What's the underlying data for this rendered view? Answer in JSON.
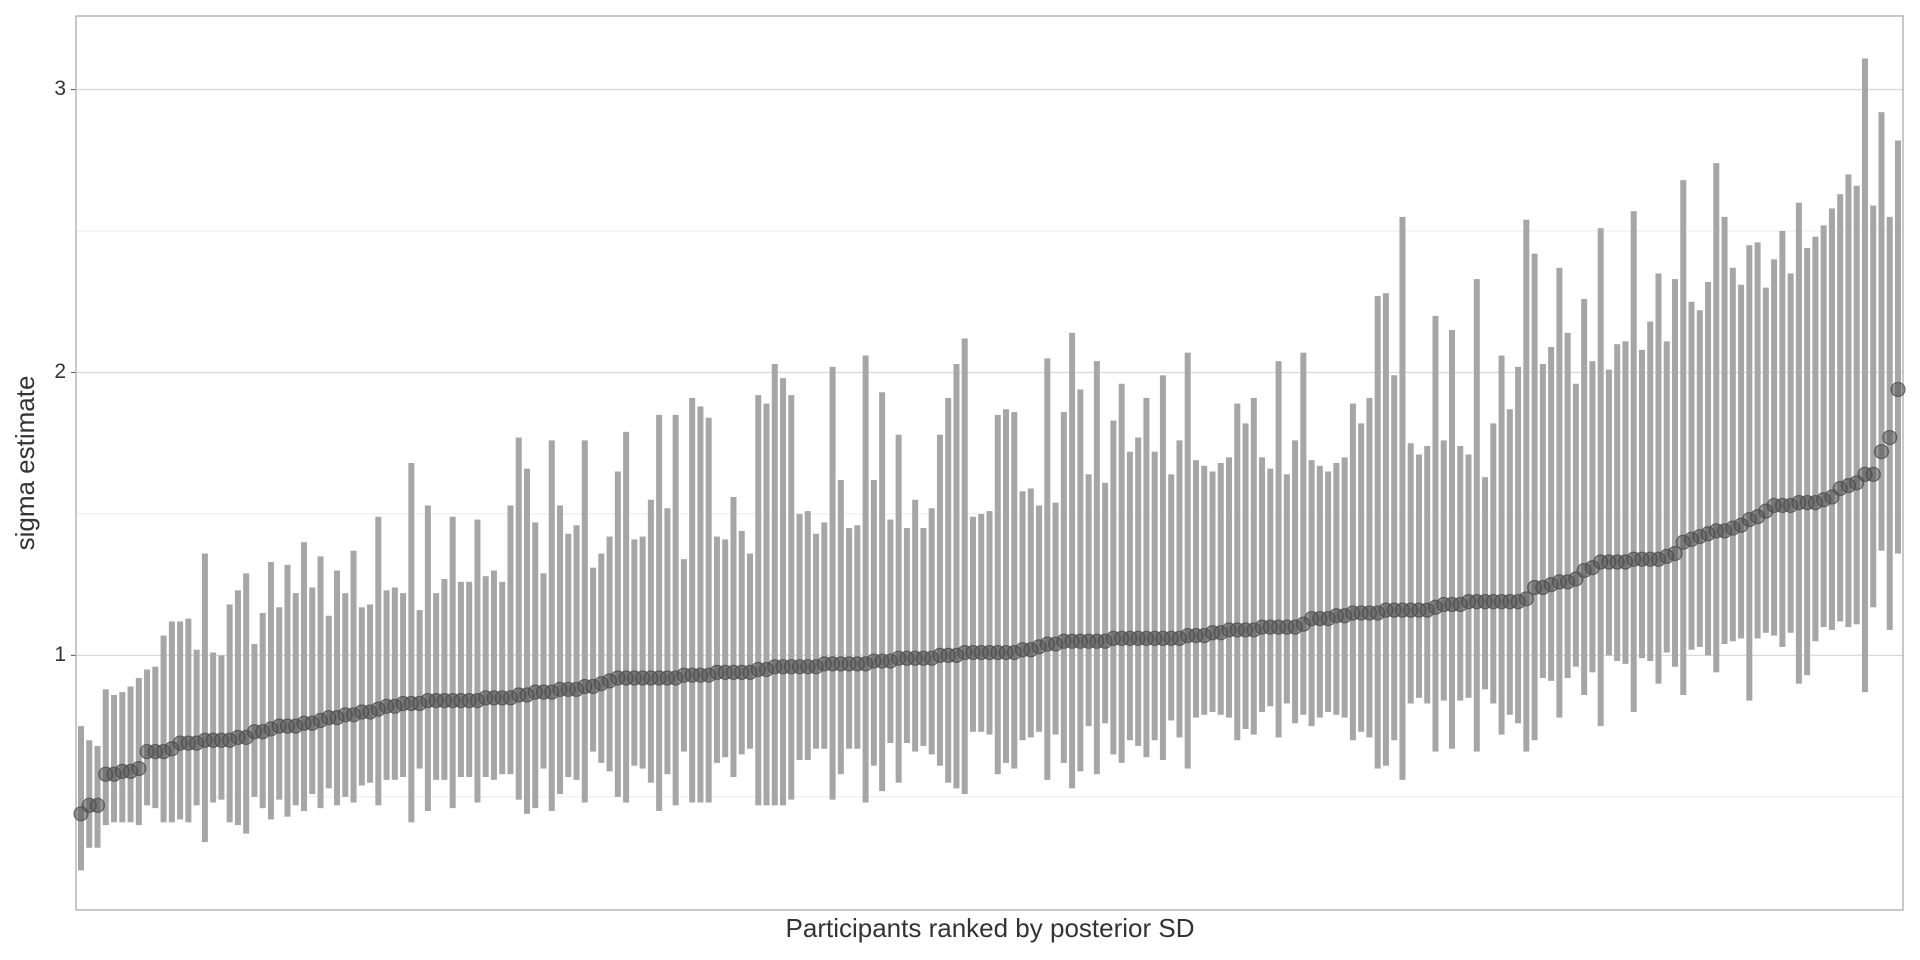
{
  "chart_data": {
    "type": "pointrange",
    "xlabel": "Participants ranked by posterior SD",
    "ylabel": "sigma estimate",
    "ylim": [
      0.1,
      3.26
    ],
    "yticks": [
      1,
      2,
      3
    ],
    "yminor": [
      0.5,
      1.5,
      2.5
    ],
    "grid": true,
    "bar_color": "#a6a6a6",
    "point_color": "#4d4d4d",
    "values": [
      0.44,
      0.47,
      0.47,
      0.58,
      0.58,
      0.59,
      0.59,
      0.6,
      0.66,
      0.66,
      0.66,
      0.67,
      0.69,
      0.69,
      0.69,
      0.7,
      0.7,
      0.7,
      0.7,
      0.71,
      0.71,
      0.73,
      0.73,
      0.74,
      0.75,
      0.75,
      0.75,
      0.76,
      0.76,
      0.77,
      0.78,
      0.78,
      0.79,
      0.79,
      0.8,
      0.8,
      0.81,
      0.82,
      0.82,
      0.83,
      0.83,
      0.83,
      0.84,
      0.84,
      0.84,
      0.84,
      0.84,
      0.84,
      0.84,
      0.85,
      0.85,
      0.85,
      0.85,
      0.86,
      0.86,
      0.87,
      0.87,
      0.87,
      0.88,
      0.88,
      0.88,
      0.89,
      0.89,
      0.9,
      0.91,
      0.92,
      0.92,
      0.92,
      0.92,
      0.92,
      0.92,
      0.92,
      0.92,
      0.93,
      0.93,
      0.93,
      0.93,
      0.94,
      0.94,
      0.94,
      0.94,
      0.94,
      0.95,
      0.95,
      0.96,
      0.96,
      0.96,
      0.96,
      0.96,
      0.96,
      0.97,
      0.97,
      0.97,
      0.97,
      0.97,
      0.97,
      0.98,
      0.98,
      0.98,
      0.99,
      0.99,
      0.99,
      0.99,
      0.99,
      1.0,
      1.0,
      1.0,
      1.01,
      1.01,
      1.01,
      1.01,
      1.01,
      1.01,
      1.01,
      1.02,
      1.02,
      1.03,
      1.04,
      1.04,
      1.05,
      1.05,
      1.05,
      1.05,
      1.05,
      1.05,
      1.06,
      1.06,
      1.06,
      1.06,
      1.06,
      1.06,
      1.06,
      1.06,
      1.06,
      1.07,
      1.07,
      1.07,
      1.08,
      1.08,
      1.09,
      1.09,
      1.09,
      1.09,
      1.1,
      1.1,
      1.1,
      1.1,
      1.1,
      1.11,
      1.13,
      1.13,
      1.13,
      1.14,
      1.14,
      1.15,
      1.15,
      1.15,
      1.15,
      1.16,
      1.16,
      1.16,
      1.16,
      1.16,
      1.16,
      1.17,
      1.18,
      1.18,
      1.18,
      1.19,
      1.19,
      1.19,
      1.19,
      1.19,
      1.19,
      1.19,
      1.2,
      1.24,
      1.24,
      1.25,
      1.26,
      1.26,
      1.27,
      1.3,
      1.31,
      1.33,
      1.33,
      1.33,
      1.33,
      1.34,
      1.34,
      1.34,
      1.34,
      1.35,
      1.36,
      1.4,
      1.41,
      1.42,
      1.43,
      1.44,
      1.44,
      1.45,
      1.46,
      1.48,
      1.49,
      1.51,
      1.53,
      1.53,
      1.53,
      1.54,
      1.54,
      1.54,
      1.55,
      1.56,
      1.59,
      1.6,
      1.61,
      1.64,
      1.64,
      1.72,
      1.77,
      1.94
    ],
    "lower": [
      0.24,
      0.32,
      0.32,
      0.4,
      0.41,
      0.41,
      0.41,
      0.4,
      0.47,
      0.46,
      0.41,
      0.41,
      0.42,
      0.41,
      0.47,
      0.34,
      0.48,
      0.49,
      0.41,
      0.4,
      0.37,
      0.5,
      0.46,
      0.42,
      0.49,
      0.43,
      0.47,
      0.45,
      0.51,
      0.46,
      0.53,
      0.47,
      0.5,
      0.48,
      0.54,
      0.55,
      0.47,
      0.56,
      0.56,
      0.57,
      0.41,
      0.6,
      0.45,
      0.56,
      0.56,
      0.46,
      0.57,
      0.57,
      0.48,
      0.57,
      0.56,
      0.58,
      0.58,
      0.49,
      0.44,
      0.46,
      0.6,
      0.45,
      0.51,
      0.57,
      0.56,
      0.48,
      0.66,
      0.62,
      0.59,
      0.5,
      0.48,
      0.61,
      0.6,
      0.55,
      0.45,
      0.58,
      0.47,
      0.66,
      0.48,
      0.48,
      0.48,
      0.62,
      0.64,
      0.57,
      0.65,
      0.67,
      0.47,
      0.47,
      0.47,
      0.47,
      0.49,
      0.63,
      0.63,
      0.67,
      0.67,
      0.49,
      0.58,
      0.67,
      0.67,
      0.48,
      0.61,
      0.52,
      0.69,
      0.55,
      0.69,
      0.66,
      0.68,
      0.65,
      0.61,
      0.55,
      0.53,
      0.51,
      0.73,
      0.73,
      0.72,
      0.58,
      0.62,
      0.6,
      0.7,
      0.71,
      0.73,
      0.56,
      0.72,
      0.62,
      0.53,
      0.59,
      0.75,
      0.58,
      0.76,
      0.65,
      0.62,
      0.7,
      0.68,
      0.64,
      0.7,
      0.63,
      0.77,
      0.71,
      0.6,
      0.78,
      0.79,
      0.8,
      0.79,
      0.78,
      0.7,
      0.74,
      0.72,
      0.8,
      0.82,
      0.71,
      0.83,
      0.76,
      0.79,
      0.75,
      0.78,
      0.8,
      0.79,
      0.78,
      0.7,
      0.73,
      0.71,
      0.6,
      0.61,
      0.7,
      0.56,
      0.83,
      0.85,
      0.83,
      0.66,
      0.84,
      0.67,
      0.84,
      0.85,
      0.66,
      0.88,
      0.83,
      0.72,
      0.79,
      0.76,
      0.66,
      0.7,
      0.92,
      0.91,
      0.78,
      0.92,
      0.96,
      0.86,
      0.94,
      0.75,
      1.0,
      0.98,
      0.97,
      0.8,
      0.99,
      0.98,
      0.9,
      1.01,
      0.96,
      0.86,
      1.02,
      1.03,
      1.0,
      0.94,
      1.04,
      1.05,
      1.06,
      0.84,
      1.06,
      1.08,
      1.07,
      1.03,
      1.08,
      0.9,
      0.93,
      1.05,
      1.1,
      1.09,
      1.12,
      1.1,
      1.11,
      0.87,
      1.17,
      1.37,
      1.09,
      1.36
    ],
    "upper": [
      0.75,
      0.7,
      0.68,
      0.88,
      0.86,
      0.87,
      0.89,
      0.92,
      0.95,
      0.96,
      1.07,
      1.12,
      1.12,
      1.13,
      1.02,
      1.36,
      1.01,
      1.0,
      1.18,
      1.23,
      1.29,
      1.04,
      1.15,
      1.33,
      1.17,
      1.32,
      1.22,
      1.4,
      1.24,
      1.35,
      1.14,
      1.3,
      1.22,
      1.37,
      1.17,
      1.18,
      1.49,
      1.23,
      1.24,
      1.22,
      1.68,
      1.16,
      1.53,
      1.22,
      1.27,
      1.49,
      1.26,
      1.26,
      1.48,
      1.28,
      1.3,
      1.26,
      1.53,
      1.77,
      1.66,
      1.47,
      1.29,
      1.76,
      1.53,
      1.43,
      1.46,
      1.76,
      1.31,
      1.36,
      1.42,
      1.65,
      1.79,
      1.41,
      1.42,
      1.55,
      1.85,
      1.52,
      1.85,
      1.34,
      1.91,
      1.88,
      1.84,
      1.42,
      1.41,
      1.56,
      1.44,
      1.36,
      1.92,
      1.89,
      2.03,
      1.98,
      1.92,
      1.5,
      1.51,
      1.43,
      1.47,
      2.02,
      1.62,
      1.45,
      1.46,
      2.06,
      1.62,
      1.93,
      1.48,
      1.78,
      1.45,
      1.55,
      1.45,
      1.52,
      1.78,
      1.91,
      2.03,
      2.12,
      1.49,
      1.5,
      1.51,
      1.85,
      1.87,
      1.86,
      1.58,
      1.59,
      1.53,
      2.05,
      1.54,
      1.86,
      2.14,
      1.94,
      1.64,
      2.04,
      1.61,
      1.83,
      1.96,
      1.72,
      1.77,
      1.91,
      1.72,
      1.99,
      1.64,
      1.76,
      2.07,
      1.69,
      1.67,
      1.65,
      1.68,
      1.7,
      1.89,
      1.82,
      1.91,
      1.7,
      1.66,
      2.04,
      1.64,
      1.76,
      2.07,
      1.69,
      1.67,
      1.65,
      1.68,
      1.7,
      1.89,
      1.82,
      1.91,
      2.27,
      2.28,
      1.99,
      2.55,
      1.75,
      1.71,
      1.74,
      2.2,
      1.76,
      2.15,
      1.74,
      1.71,
      2.33,
      1.63,
      1.82,
      2.06,
      1.87,
      2.02,
      2.54,
      2.42,
      2.03,
      2.09,
      2.37,
      2.14,
      1.96,
      2.26,
      2.04,
      2.51,
      2.01,
      2.1,
      2.11,
      2.57,
      2.08,
      2.18,
      2.35,
      2.11,
      2.33,
      2.68,
      2.25,
      2.22,
      2.32,
      2.74,
      2.55,
      2.37,
      2.31,
      2.45,
      2.46,
      2.3,
      2.4,
      2.5,
      2.35,
      2.6,
      2.44,
      2.48,
      2.52,
      2.58,
      2.63,
      2.7,
      2.66,
      3.11,
      2.59,
      2.92,
      2.55,
      2.82
    ]
  }
}
